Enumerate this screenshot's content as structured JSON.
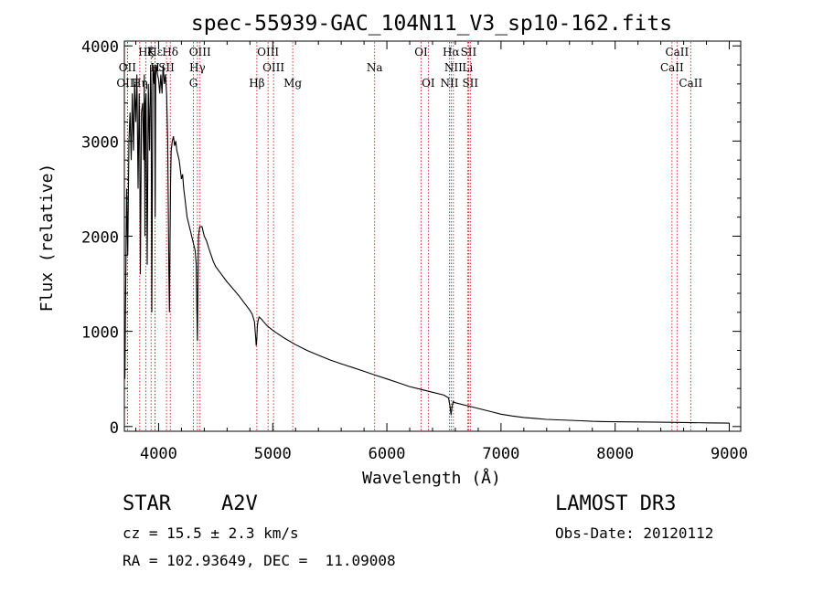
{
  "chart_data": {
    "type": "line",
    "title": "spec-55939-GAC_104N11_V3_sp10-162.fits",
    "xlabel": "Wavelength (Å)",
    "ylabel": "Flux (relative)",
    "xlim": [
      3700,
      9100
    ],
    "ylim": [
      -50,
      4050
    ],
    "xticks": [
      4000,
      5000,
      6000,
      7000,
      8000,
      9000
    ],
    "yticks": [
      0,
      1000,
      2000,
      3000,
      4000
    ],
    "series": [
      {
        "name": "spectrum",
        "x": [
          3700,
          3705,
          3710,
          3720,
          3730,
          3740,
          3750,
          3760,
          3770,
          3780,
          3790,
          3800,
          3810,
          3820,
          3830,
          3835,
          3840,
          3850,
          3860,
          3870,
          3875,
          3880,
          3885,
          3890,
          3900,
          3910,
          3920,
          3930,
          3935,
          3940,
          3950,
          3960,
          3965,
          3970,
          3975,
          3980,
          3990,
          4000,
          4010,
          4020,
          4030,
          4040,
          4050,
          4060,
          4070,
          4080,
          4090,
          4095,
          4100,
          4105,
          4110,
          4120,
          4130,
          4140,
          4150,
          4160,
          4170,
          4180,
          4190,
          4200,
          4210,
          4220,
          4230,
          4240,
          4250,
          4260,
          4270,
          4280,
          4290,
          4300,
          4310,
          4320,
          4330,
          4335,
          4340,
          4345,
          4350,
          4360,
          4370,
          4380,
          4390,
          4400,
          4420,
          4440,
          4460,
          4480,
          4500,
          4550,
          4600,
          4650,
          4700,
          4750,
          4800,
          4820,
          4840,
          4850,
          4855,
          4861,
          4865,
          4870,
          4880,
          4900,
          4920,
          4950,
          5000,
          5100,
          5200,
          5300,
          5400,
          5500,
          5600,
          5700,
          5800,
          5900,
          6000,
          6100,
          6200,
          6300,
          6400,
          6500,
          6540,
          6555,
          6563,
          6570,
          6580,
          6600,
          6700,
          6800,
          6900,
          7000,
          7100,
          7200,
          7300,
          7400,
          7500,
          7600,
          7700,
          7800,
          7900,
          8000,
          8200,
          8400,
          8600,
          8800,
          9000
        ],
        "y": [
          800,
          500,
          1200,
          2500,
          1800,
          3000,
          3300,
          2800,
          3500,
          2900,
          3600,
          3200,
          3700,
          2500,
          3500,
          3000,
          1600,
          3300,
          3400,
          2800,
          3700,
          2000,
          3400,
          3500,
          1700,
          3600,
          2900,
          3800,
          3500,
          1200,
          3800,
          3600,
          3800,
          2200,
          3700,
          3800,
          3700,
          3650,
          3500,
          3700,
          3500,
          3800,
          3600,
          3700,
          3500,
          3000,
          1600,
          1200,
          1900,
          2600,
          2900,
          3000,
          3050,
          2950,
          3000,
          2900,
          2850,
          2800,
          2700,
          2600,
          2650,
          2500,
          2400,
          2300,
          2200,
          2150,
          2100,
          2050,
          2000,
          1950,
          1900,
          1850,
          1700,
          1200,
          900,
          1500,
          2000,
          2100,
          2100,
          2100,
          2050,
          2000,
          1950,
          1870,
          1800,
          1730,
          1680,
          1600,
          1520,
          1450,
          1380,
          1300,
          1220,
          1180,
          1100,
          950,
          850,
          930,
          1050,
          1100,
          1150,
          1130,
          1100,
          1060,
          1010,
          930,
          860,
          800,
          750,
          700,
          660,
          620,
          580,
          540,
          500,
          460,
          420,
          390,
          360,
          330,
          300,
          200,
          120,
          200,
          260,
          250,
          220,
          190,
          160,
          130,
          110,
          95,
          85,
          75,
          70,
          65,
          60,
          55,
          52,
          50,
          48,
          45,
          42,
          38,
          35
        ]
      }
    ],
    "line_markers": [
      {
        "label": "Hζ",
        "wave": 3889,
        "row": 0
      },
      {
        "label": "OII",
        "wave": 3727,
        "row": 1
      },
      {
        "label": "OIII",
        "wave": 3727,
        "row": 2
      },
      {
        "label": "Hε",
        "wave": 3970,
        "row": 0
      },
      {
        "label": "K",
        "wave": 3934,
        "row": 0
      },
      {
        "label": "H",
        "wave": 3969,
        "row": 1
      },
      {
        "label": "Hη",
        "wave": 3835,
        "row": 2
      },
      {
        "label": "SII",
        "wave": 4069,
        "row": 1
      },
      {
        "label": "Hδ",
        "wave": 4102,
        "row": 0
      },
      {
        "label": "OIII",
        "wave": 4363,
        "row": 0
      },
      {
        "label": "Hγ",
        "wave": 4340,
        "row": 1
      },
      {
        "label": "G",
        "wave": 4305,
        "row": 2
      },
      {
        "label": "Hβ",
        "wave": 4861,
        "row": 2
      },
      {
        "label": "OIII",
        "wave": 4959,
        "row": 0
      },
      {
        "label": "OIII",
        "wave": 5007,
        "row": 1
      },
      {
        "label": "Mg",
        "wave": 5175,
        "row": 2
      },
      {
        "label": "Na",
        "wave": 5893,
        "row": 1
      },
      {
        "label": "OI",
        "wave": 6300,
        "row": 0
      },
      {
        "label": "OI",
        "wave": 6363,
        "row": 2
      },
      {
        "label": "Hα",
        "wave": 6563,
        "row": 0
      },
      {
        "label": "SII",
        "wave": 6716,
        "row": 0
      },
      {
        "label": "NII",
        "wave": 6583,
        "row": 1
      },
      {
        "label": "Li",
        "wave": 6707,
        "row": 1
      },
      {
        "label": "NII",
        "wave": 6548,
        "row": 2
      },
      {
        "label": "SII",
        "wave": 6731,
        "row": 2
      },
      {
        "label": "CaII",
        "wave": 8542,
        "row": 0
      },
      {
        "label": "CaII",
        "wave": 8498,
        "row": 1
      },
      {
        "label": "CaII",
        "wave": 8662,
        "row": 2
      }
    ],
    "marker_color": "#cc0000",
    "line_color": "#000000"
  },
  "info": {
    "object_type": "STAR",
    "subclass": "A2V",
    "survey": "LAMOST DR3",
    "redshift": "cz = 15.5 ± 2.3 km/s",
    "obs_date": "Obs-Date: 20120112",
    "coords": "RA = 102.93649, DEC =  11.09008"
  }
}
